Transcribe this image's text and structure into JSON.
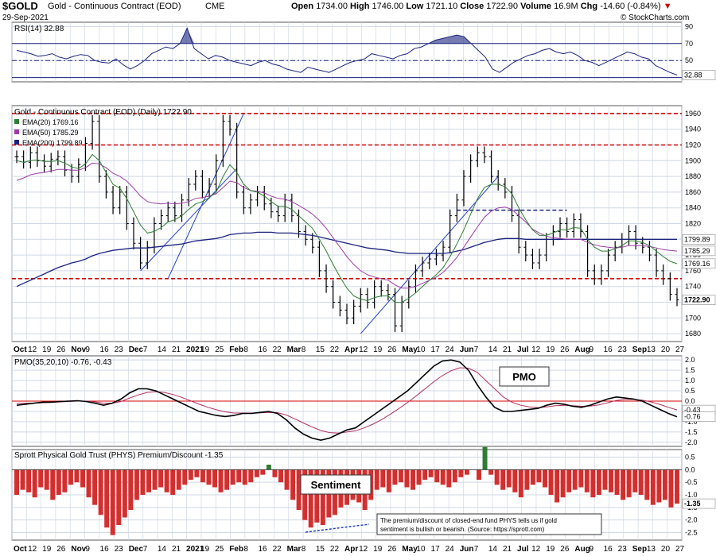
{
  "header": {
    "ticker": "$GOLD",
    "name": "Gold - Continuous Contract (EOD)",
    "exchange": "CME",
    "date": "29-Sep-2021",
    "open_label": "Open",
    "open": "1734.00",
    "high_label": "High",
    "high": "1746.00",
    "low_label": "Low",
    "low": "1721.10",
    "close_label": "Close",
    "close": "1722.90",
    "volume_label": "Volume",
    "volume": "16.9M",
    "chg_label": "Chg",
    "chg": "-14.60 (-0.84%)",
    "chg_arrow": "▼",
    "watermark": "© StockCharts.com"
  },
  "colors": {
    "grid": "#cfd8e6",
    "red_line": "#d40000",
    "ema20": "#2e7d32",
    "ema50": "#9c3ca8",
    "ema200": "#1a237e",
    "trend_blue": "#1f3fbf",
    "rsi": "#1a237e",
    "hist": "#d32f2f",
    "hist_pos": "#2e7d32",
    "pmo_signal": "#b03060"
  },
  "chart_data": [
    {
      "type": "line",
      "title": "RSI(14) 32.88",
      "ylim": [
        25,
        95
      ],
      "ticks": [
        "90",
        "70",
        "50",
        "30"
      ],
      "reference_lines": [
        70,
        50,
        30
      ],
      "last_value": "32.88",
      "values": [
        62,
        60,
        58,
        55,
        56,
        58,
        54,
        52,
        55,
        57,
        56,
        50,
        48,
        47,
        52,
        45,
        40,
        44,
        50,
        58,
        62,
        66,
        64,
        70,
        88,
        64,
        58,
        52,
        56,
        54,
        50,
        48,
        46,
        44,
        48,
        50,
        46,
        44,
        40,
        38,
        36,
        42,
        40,
        38,
        36,
        40,
        44,
        48,
        50,
        52,
        58,
        56,
        54,
        52,
        56,
        58,
        64,
        66,
        70,
        74,
        76,
        78,
        80,
        78,
        70,
        62,
        54,
        40,
        36,
        42,
        48,
        52,
        56,
        58,
        62,
        64,
        60,
        58,
        60,
        56,
        50,
        48,
        44,
        48,
        52,
        56,
        60,
        58,
        54,
        52,
        44,
        40,
        36,
        33
      ]
    },
    {
      "type": "line",
      "title": "Gold - Continuous Contract (EOD) (Daily) 1722.90",
      "ylim": [
        1670,
        1970
      ],
      "ticks": [
        "1960",
        "1940",
        "1920",
        "1900",
        "1880",
        "1860",
        "1840",
        "1820",
        "1800",
        "1780",
        "1760",
        "1740",
        "1720",
        "1700",
        "1680"
      ],
      "horizontal_lines": [
        1960,
        1920,
        1750
      ],
      "resistance_line": {
        "from_index": 64,
        "to_index": 80,
        "value": 1837
      },
      "legend": [
        {
          "label": "EMA(20)",
          "value": "1769.16",
          "color": "#2e7d32"
        },
        {
          "label": "EMA(50)",
          "value": "1785.29",
          "color": "#9c3ca8"
        },
        {
          "label": "EMA(200)",
          "value": "1799.89",
          "color": "#1a237e"
        }
      ],
      "right_labels": [
        {
          "text": "1799.89",
          "value": 1799.89
        },
        {
          "text": "1785.29",
          "value": 1785.29
        },
        {
          "text": "1769.16",
          "value": 1769.16
        },
        {
          "text": "1722.90",
          "value": 1722.9,
          "bold": true
        }
      ],
      "x_axis_labels": [
        "Oct",
        "12",
        "19",
        "26",
        "Nov",
        "9",
        "16",
        "23",
        "Dec",
        "7",
        "14",
        "21",
        "2021",
        "19",
        "25",
        "Feb",
        "8",
        "16",
        "22",
        "Mar",
        "8",
        "15",
        "22",
        "Apr",
        "12",
        "19",
        "26",
        "May",
        "10",
        "17",
        "24",
        "Jun",
        "7",
        "14",
        "21",
        "Jul",
        "12",
        "19",
        "26",
        "Aug",
        "9",
        "16",
        "23",
        "Sep",
        "13",
        "20",
        "27"
      ],
      "close": [
        1905,
        1898,
        1910,
        1900,
        1893,
        1902,
        1905,
        1888,
        1880,
        1895,
        1922,
        1950,
        1880,
        1860,
        1840,
        1860,
        1820,
        1795,
        1770,
        1790,
        1820,
        1830,
        1840,
        1830,
        1850,
        1870,
        1880,
        1860,
        1870,
        1900,
        1950,
        1940,
        1860,
        1840,
        1850,
        1860,
        1845,
        1835,
        1830,
        1850,
        1830,
        1810,
        1800,
        1790,
        1760,
        1740,
        1720,
        1710,
        1700,
        1715,
        1730,
        1720,
        1740,
        1735,
        1730,
        1690,
        1720,
        1740,
        1760,
        1770,
        1775,
        1780,
        1790,
        1830,
        1850,
        1880,
        1900,
        1910,
        1905,
        1880,
        1870,
        1860,
        1830,
        1790,
        1780,
        1770,
        1780,
        1800,
        1810,
        1820,
        1810,
        1825,
        1810,
        1760,
        1750,
        1760,
        1780,
        1790,
        1800,
        1810,
        1795,
        1790,
        1780,
        1760,
        1750,
        1730,
        1723
      ],
      "ema20": [
        1900,
        1898,
        1900,
        1901,
        1899,
        1899,
        1900,
        1897,
        1892,
        1890,
        1896,
        1908,
        1900,
        1885,
        1870,
        1865,
        1852,
        1835,
        1818,
        1808,
        1810,
        1815,
        1822,
        1825,
        1830,
        1838,
        1845,
        1848,
        1853,
        1860,
        1880,
        1895,
        1885,
        1870,
        1862,
        1860,
        1855,
        1848,
        1842,
        1842,
        1838,
        1830,
        1822,
        1814,
        1800,
        1785,
        1768,
        1752,
        1738,
        1728,
        1724,
        1722,
        1726,
        1728,
        1728,
        1720,
        1720,
        1725,
        1732,
        1740,
        1748,
        1755,
        1764,
        1778,
        1794,
        1812,
        1832,
        1852,
        1866,
        1870,
        1870,
        1867,
        1858,
        1840,
        1825,
        1812,
        1805,
        1805,
        1808,
        1812,
        1812,
        1815,
        1814,
        1800,
        1790,
        1785,
        1785,
        1788,
        1792,
        1798,
        1798,
        1796,
        1792,
        1785,
        1778,
        1772,
        1769
      ],
      "ema50": [
        1875,
        1878,
        1882,
        1884,
        1885,
        1887,
        1889,
        1889,
        1888,
        1888,
        1891,
        1897,
        1896,
        1891,
        1884,
        1880,
        1874,
        1865,
        1855,
        1848,
        1846,
        1845,
        1846,
        1845,
        1846,
        1848,
        1852,
        1853,
        1855,
        1858,
        1866,
        1874,
        1872,
        1866,
        1862,
        1861,
        1859,
        1855,
        1852,
        1851,
        1848,
        1843,
        1838,
        1832,
        1824,
        1814,
        1802,
        1790,
        1778,
        1768,
        1760,
        1755,
        1752,
        1750,
        1748,
        1742,
        1738,
        1738,
        1740,
        1744,
        1748,
        1752,
        1758,
        1767,
        1777,
        1790,
        1803,
        1816,
        1828,
        1836,
        1840,
        1841,
        1838,
        1830,
        1822,
        1813,
        1808,
        1804,
        1802,
        1801,
        1800,
        1800,
        1800,
        1796,
        1793,
        1791,
        1790,
        1789,
        1790,
        1792,
        1792,
        1792,
        1791,
        1789,
        1787,
        1786,
        1785
      ],
      "ema200": [
        1740,
        1744,
        1748,
        1752,
        1756,
        1760,
        1764,
        1767,
        1770,
        1772,
        1775,
        1779,
        1782,
        1784,
        1786,
        1787,
        1788,
        1789,
        1789,
        1789,
        1790,
        1791,
        1792,
        1793,
        1794,
        1796,
        1798,
        1799,
        1800,
        1801,
        1803,
        1806,
        1807,
        1808,
        1808,
        1809,
        1809,
        1809,
        1808,
        1808,
        1808,
        1807,
        1806,
        1805,
        1803,
        1801,
        1799,
        1797,
        1795,
        1793,
        1791,
        1789,
        1788,
        1787,
        1786,
        1784,
        1783,
        1782,
        1782,
        1782,
        1782,
        1782,
        1782,
        1783,
        1785,
        1787,
        1790,
        1793,
        1796,
        1798,
        1800,
        1801,
        1801,
        1801,
        1800,
        1800,
        1800,
        1800,
        1800,
        1800,
        1800,
        1800,
        1800,
        1800,
        1800,
        1800,
        1800,
        1800,
        1800,
        1800,
        1800,
        1800,
        1800,
        1800,
        1800,
        1800,
        1800
      ]
    },
    {
      "type": "line",
      "title": "PMO(35,20,10) -0.76, -0.43",
      "ylim": [
        -2.2,
        2.2
      ],
      "ticks": [
        "2.0",
        "1.5",
        "1.0",
        "0.5",
        "0.0",
        "-0.5",
        "-1.0",
        "-1.5",
        "-2.0"
      ],
      "annotation": "PMO",
      "right_labels": [
        {
          "text": "-0.43",
          "value": -0.43
        },
        {
          "text": "-0.76",
          "value": -0.76
        }
      ],
      "pmo": [
        -0.2,
        -0.15,
        -0.1,
        -0.05,
        -0.05,
        -0.02,
        0.0,
        0.02,
        -0.02,
        -0.1,
        -0.2,
        -0.1,
        0.1,
        0.4,
        0.6,
        0.6,
        0.5,
        0.3,
        0.1,
        -0.1,
        -0.3,
        -0.5,
        -0.6,
        -0.7,
        -0.75,
        -0.7,
        -0.6,
        -0.6,
        -0.55,
        -0.5,
        -0.6,
        -0.9,
        -1.3,
        -1.6,
        -1.8,
        -1.9,
        -1.8,
        -1.6,
        -1.4,
        -1.3,
        -1.0,
        -0.7,
        -0.4,
        -0.1,
        0.2,
        0.5,
        0.9,
        1.3,
        1.7,
        1.95,
        2.0,
        1.9,
        1.5,
        0.8,
        0.2,
        -0.3,
        -0.5,
        -0.5,
        -0.45,
        -0.4,
        -0.35,
        -0.2,
        -0.1,
        -0.15,
        -0.25,
        -0.3,
        -0.2,
        -0.05,
        0.1,
        0.2,
        0.15,
        0.1,
        0.0,
        -0.2,
        -0.4,
        -0.6,
        -0.76
      ],
      "signal": [
        -0.1,
        -0.1,
        -0.1,
        -0.08,
        -0.06,
        -0.04,
        -0.02,
        0.0,
        0.0,
        -0.04,
        -0.1,
        -0.1,
        -0.02,
        0.15,
        0.3,
        0.42,
        0.46,
        0.42,
        0.32,
        0.18,
        0.02,
        -0.15,
        -0.3,
        -0.42,
        -0.52,
        -0.58,
        -0.58,
        -0.58,
        -0.57,
        -0.55,
        -0.56,
        -0.67,
        -0.86,
        -1.06,
        -1.26,
        -1.43,
        -1.53,
        -1.55,
        -1.5,
        -1.44,
        -1.3,
        -1.12,
        -0.9,
        -0.64,
        -0.36,
        -0.06,
        0.26,
        0.6,
        0.94,
        1.24,
        1.48,
        1.62,
        1.6,
        1.4,
        1.0,
        0.6,
        0.2,
        -0.05,
        -0.2,
        -0.28,
        -0.32,
        -0.28,
        -0.22,
        -0.2,
        -0.22,
        -0.25,
        -0.24,
        -0.18,
        -0.08,
        0.03,
        0.08,
        0.08,
        0.05,
        -0.04,
        -0.16,
        -0.3,
        -0.43
      ]
    },
    {
      "type": "bar",
      "title": "Sprott Physical Gold Trust (PHYS) Premium/Discount -1.35",
      "ylim": [
        -2.8,
        0.8
      ],
      "ticks": [
        "0.5",
        "0.0",
        "-0.5",
        "-1.0",
        "-1.5",
        "-2.0",
        "-2.5"
      ],
      "annotation": "Sentiment",
      "note": "The premium/discount of closed-end fund PHYS tells us if gold sentiment is bullish or bearish. (Source: https://sprott.com)",
      "right_labels": [
        {
          "text": "-1.35",
          "value": -1.35,
          "bold": true
        }
      ],
      "values": [
        -1.0,
        -0.8,
        -0.9,
        -1.1,
        -0.7,
        -0.8,
        -1.2,
        -1.0,
        -0.9,
        -0.6,
        -0.5,
        -0.7,
        -1.1,
        -1.4,
        -1.8,
        -2.3,
        -2.6,
        -2.2,
        -1.9,
        -1.6,
        -1.2,
        -1.0,
        -0.9,
        -0.8,
        -0.7,
        -0.9,
        -1.0,
        -0.8,
        -0.6,
        -0.4,
        -0.3,
        -0.5,
        -0.6,
        -0.7,
        -0.9,
        -0.8,
        -0.6,
        -0.5,
        -0.6,
        -0.5,
        -0.3,
        -0.2,
        0.2,
        -0.3,
        -0.5,
        -0.8,
        -1.2,
        -1.6,
        -2.0,
        -2.3,
        -2.1,
        -2.2,
        -1.9,
        -1.8,
        -1.5,
        -1.4,
        -1.2,
        -1.3,
        -1.6,
        -1.2,
        -0.8,
        -0.7,
        -0.9,
        -0.6,
        -0.5,
        -0.7,
        -0.8,
        -0.6,
        -0.4,
        -0.3,
        -0.5,
        -0.6,
        -0.7,
        -0.5,
        -0.3,
        -0.2,
        0.0,
        -0.4,
        0.9,
        -0.2,
        -0.6,
        -0.8,
        -0.7,
        -0.9,
        -1.1,
        -0.8,
        -0.6,
        -0.5,
        -0.7,
        -1.0,
        -1.3,
        -1.1,
        -0.9,
        -0.8,
        -0.7,
        -0.9,
        -1.1,
        -1.0,
        -0.8,
        -0.9,
        -1.0,
        -1.2,
        -1.1,
        -0.9,
        -1.0,
        -1.2,
        -1.4,
        -1.3,
        -1.2,
        -1.5,
        -1.35
      ],
      "x_axis_labels": [
        "Oct",
        "12",
        "19",
        "26",
        "Nov",
        "9",
        "16",
        "23",
        "Dec",
        "7",
        "14",
        "21",
        "2021",
        "19",
        "25",
        "Feb",
        "8",
        "16",
        "22",
        "Mar",
        "8",
        "15",
        "22",
        "Apr",
        "12",
        "19",
        "26",
        "May",
        "10",
        "17",
        "24",
        "Jun",
        "7",
        "14",
        "21",
        "Jul",
        "12",
        "19",
        "26",
        "Aug",
        "9",
        "16",
        "23",
        "Sep",
        "13",
        "20",
        "27"
      ]
    }
  ]
}
